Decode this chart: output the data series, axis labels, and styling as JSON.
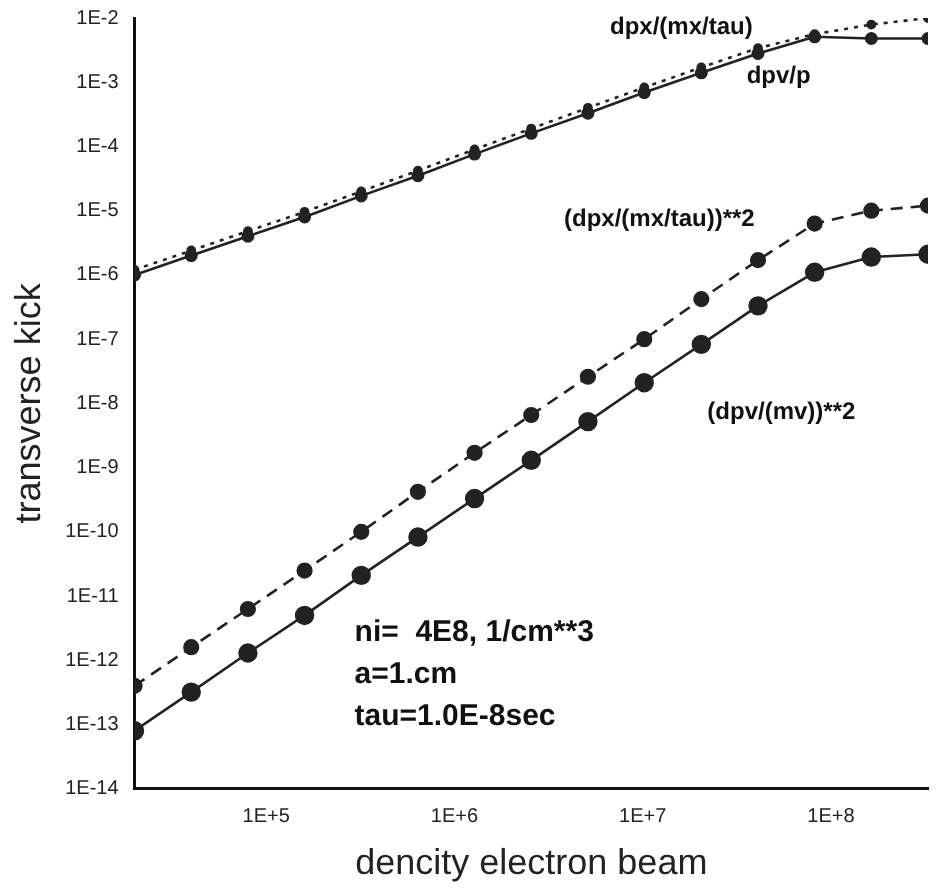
{
  "chart_data": {
    "type": "line",
    "xlabel": "dencity electron beam",
    "ylabel": "transverse kick",
    "log": "xy",
    "grid": false,
    "legend": false,
    "marker": "circle",
    "x": [
      20000.0,
      40000.0,
      80000.0,
      160000.0,
      320000.0,
      640000.0,
      1280000.0,
      2560000.0,
      5120000.0,
      10200000.0,
      20500000.0,
      41000000.0,
      82000000.0,
      164000000.0,
      328000000.0
    ],
    "xlim": [
      20000.0,
      328000000.0
    ],
    "xticks": [
      {
        "value": 100000.0,
        "label": "1E+5"
      },
      {
        "value": 1000000.0,
        "label": "1E+6"
      },
      {
        "value": 10000000.0,
        "label": "1E+7"
      },
      {
        "value": 100000000.0,
        "label": "1E+8"
      }
    ],
    "ylim": [
      1e-14,
      0.01
    ],
    "yticks": [
      {
        "value": 1e-14,
        "label": "1E-14"
      },
      {
        "value": 1e-13,
        "label": "1E-13"
      },
      {
        "value": 1e-12,
        "label": "1E-12"
      },
      {
        "value": 1e-11,
        "label": "1E-11"
      },
      {
        "value": 1e-10,
        "label": "1E-10"
      },
      {
        "value": 1e-09,
        "label": "1E-9"
      },
      {
        "value": 1e-08,
        "label": "1E-8"
      },
      {
        "value": 1e-07,
        "label": "1E-7"
      },
      {
        "value": 1e-06,
        "label": "1E-6"
      },
      {
        "value": 1e-05,
        "label": "1E-5"
      },
      {
        "value": 0.0001,
        "label": "1E-4"
      },
      {
        "value": 0.001,
        "label": "1E-3"
      },
      {
        "value": 0.01,
        "label": "1E-2"
      }
    ],
    "series": [
      {
        "name": "dpx/(mx/tau)",
        "color": "#222222",
        "line_style": "dotted",
        "values": [
          1.2e-06,
          2.4e-06,
          4.8e-06,
          9.6e-06,
          2e-05,
          4.2e-05,
          9e-05,
          0.00019,
          0.0004,
          0.00083,
          0.0017,
          0.0034,
          0.0056,
          0.0079,
          0.01
        ]
      },
      {
        "name": "dpv/p",
        "color": "#222222",
        "line_style": "solid",
        "values": [
          1e-06,
          2e-06,
          4e-06,
          8e-06,
          1.7e-05,
          3.5e-05,
          7.6e-05,
          0.00016,
          0.00033,
          0.00069,
          0.0014,
          0.0028,
          0.0051,
          0.0048,
          0.0048
        ]
      },
      {
        "name": "(dpx/(mx/tau))**2",
        "color": "#222222",
        "line_style": "dashed",
        "values": [
          4e-13,
          1.6e-12,
          6.3e-12,
          2.5e-11,
          1e-10,
          4.2e-10,
          1.7e-09,
          6.6e-09,
          2.6e-08,
          1e-07,
          4.2e-07,
          1.7e-06,
          6.3e-06,
          1e-05,
          1.2e-05
        ]
      },
      {
        "name": "(dpv/(mv))**2",
        "color": "#222222",
        "line_style": "solid",
        "values": [
          8e-14,
          3.2e-13,
          1.3e-12,
          5e-12,
          2.1e-11,
          8.3e-11,
          3.3e-10,
          1.3e-09,
          5.2e-09,
          2.1e-08,
          8.3e-08,
          3.3e-07,
          1.1e-06,
          1.9e-06,
          2.1e-06
        ]
      }
    ],
    "annotations": [
      "ni=  4E8, 1/cm**3",
      "a=1.cm",
      "tau=1.0E-8sec"
    ]
  }
}
